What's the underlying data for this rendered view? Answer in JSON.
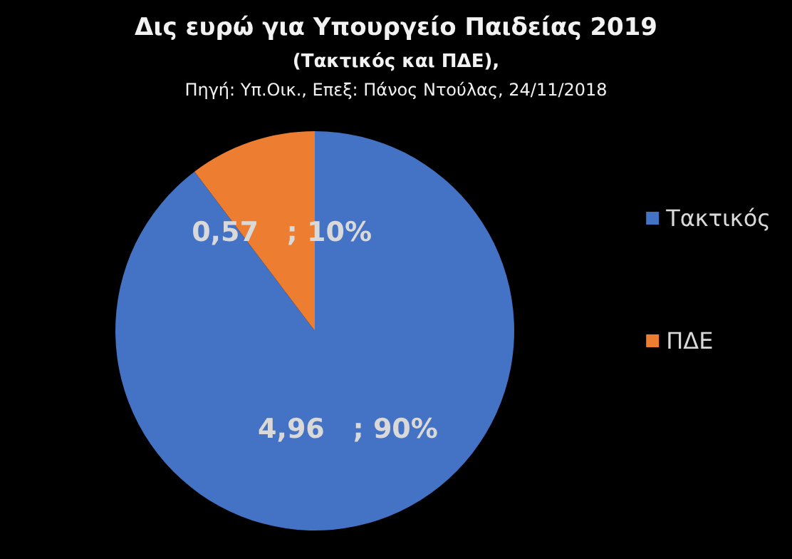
{
  "chart_data": {
    "type": "pie",
    "title": "Δις ευρώ για Υπουργείο Παιδείας 2019",
    "subtitle": "(Τακτικός και ΠΔΕ),",
    "annotations": [
      "Πηγή: Υπ.Οικ., Επεξ: Πάνος Ντούλας, 24/11/2018"
    ],
    "categories": [
      "Τακτικός",
      "ΠΔΕ"
    ],
    "values": [
      4.96,
      0.57
    ],
    "value_labels": [
      "4,96   ; 90%",
      "0,57   ; 10%"
    ],
    "colors": [
      "#4472c4",
      "#ed7d31"
    ],
    "legend": "right"
  }
}
